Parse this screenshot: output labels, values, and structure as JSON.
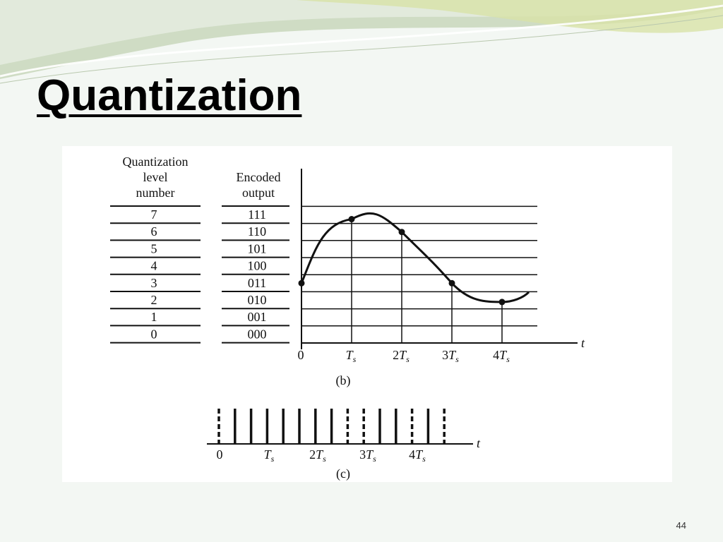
{
  "slide": {
    "title": "Quantization",
    "page_number": "44"
  },
  "figure": {
    "table": {
      "level_header": [
        "Quantization",
        "level",
        "number"
      ],
      "code_header": [
        "Encoded",
        "output"
      ],
      "levels": [
        {
          "level": "7",
          "code": "111"
        },
        {
          "level": "6",
          "code": "110"
        },
        {
          "level": "5",
          "code": "101"
        },
        {
          "level": "4",
          "code": "100"
        },
        {
          "level": "3",
          "code": "011"
        },
        {
          "level": "2",
          "code": "010"
        },
        {
          "level": "1",
          "code": "001"
        },
        {
          "level": "0",
          "code": "000"
        }
      ]
    },
    "plot_b": {
      "caption": "(b)",
      "axis_label": "t",
      "tick_labels": [
        "0",
        "Ts",
        "2Ts",
        "3Ts",
        "4Ts"
      ],
      "samples_level": [
        3.5,
        7.25,
        6.5,
        3.5,
        2.4
      ]
    },
    "plot_c": {
      "caption": "(c)",
      "axis_label": "t",
      "tick_labels": [
        "0",
        "Ts",
        "2Ts",
        "3Ts",
        "4Ts"
      ],
      "pulse_pattern": [
        "dashed",
        "solid",
        "solid",
        "solid",
        "solid",
        "solid",
        "solid",
        "solid",
        "dashed",
        "dashed",
        "solid",
        "solid",
        "dashed",
        "solid",
        "dashed"
      ]
    }
  }
}
